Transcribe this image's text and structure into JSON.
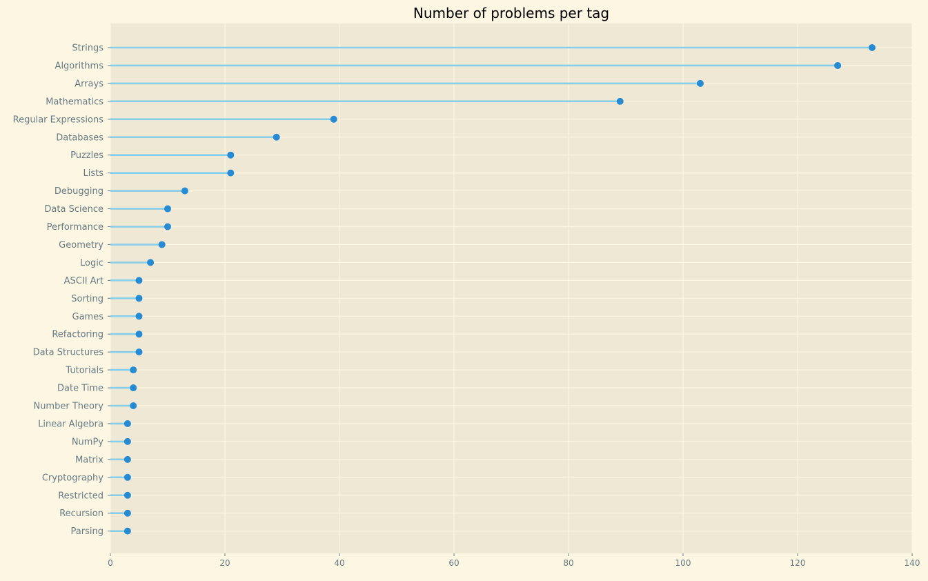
{
  "chart_data": {
    "type": "lollipop",
    "title": "Number of problems per tag",
    "xlabel": "",
    "ylabel": "",
    "xlim": [
      0,
      140
    ],
    "xticks": [
      0,
      20,
      40,
      60,
      80,
      100,
      120,
      140
    ],
    "grid": true,
    "categories": [
      "Strings",
      "Algorithms",
      "Arrays",
      "Mathematics",
      "Regular Expressions",
      "Databases",
      "Puzzles",
      "Lists",
      "Debugging",
      "Data Science",
      "Performance",
      "Geometry",
      "Logic",
      "ASCII Art",
      "Sorting",
      "Games",
      "Refactoring",
      "Data Structures",
      "Tutorials",
      "Date Time",
      "Number Theory",
      "Linear Algebra",
      "NumPy",
      "Matrix",
      "Cryptography",
      "Restricted",
      "Recursion",
      "Parsing"
    ],
    "values": [
      133,
      127,
      103,
      89,
      39,
      29,
      21,
      21,
      13,
      10,
      10,
      9,
      7,
      5,
      5,
      5,
      5,
      5,
      4,
      4,
      4,
      3,
      3,
      3,
      3,
      3,
      3,
      3
    ],
    "colors": {
      "background": "#fdf6e3",
      "plot_background": "#eee8d5",
      "grid": "#fdf6e3",
      "stem": "#87ceeb",
      "marker": "#268bd2",
      "tick_text": "#657b83",
      "title_text": "#000000"
    }
  }
}
